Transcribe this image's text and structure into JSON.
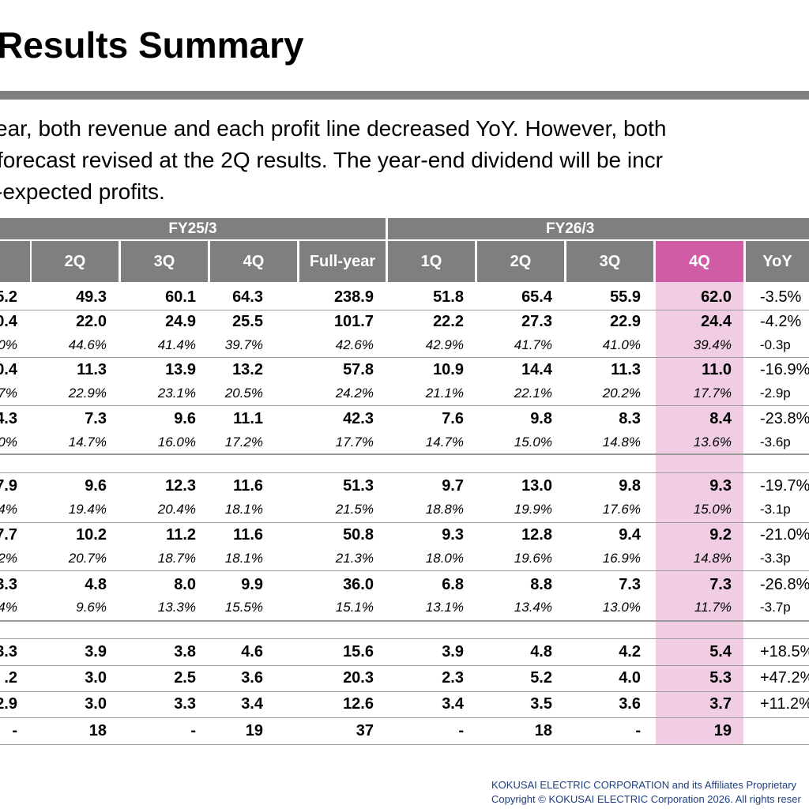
{
  "title": "Results Summary",
  "summary": [
    "ear, both revenue and each profit line decreased YoY. However, both",
    "forecast revised at the 2Q results. The year-end dividend will be incr",
    "-expected profits."
  ],
  "table": {
    "fy_prev": "FY25/3",
    "fy_curr": "FY26/3",
    "columns": [
      "2Q",
      "3Q",
      "4Q",
      "Full-year",
      "1Q",
      "2Q",
      "3Q",
      "4Q",
      "YoY"
    ],
    "rows": [
      {
        "kind": "main",
        "cells": [
          "5.2",
          "49.3",
          "60.1",
          "64.3",
          "238.9",
          "51.8",
          "65.4",
          "55.9",
          "62.0",
          "-3.5%"
        ]
      },
      {
        "kind": "main",
        "cells": [
          "0.4",
          "22.0",
          "24.9",
          "25.5",
          "101.7",
          "22.2",
          "27.3",
          "22.9",
          "24.4",
          "-4.2%"
        ]
      },
      {
        "kind": "sub",
        "cells": [
          "0%",
          "44.6%",
          "41.4%",
          "39.7%",
          "42.6%",
          "42.9%",
          "41.7%",
          "41.0%",
          "39.4%",
          "-0.3p"
        ]
      },
      {
        "kind": "main",
        "cells": [
          "0.4",
          "11.3",
          "13.9",
          "13.2",
          "57.8",
          "10.9",
          "14.4",
          "11.3",
          "11.0",
          "-16.9%"
        ]
      },
      {
        "kind": "sub",
        "cells": [
          "7%",
          "22.9%",
          "23.1%",
          "20.5%",
          "24.2%",
          "21.1%",
          "22.1%",
          "20.2%",
          "17.7%",
          "-2.9p"
        ]
      },
      {
        "kind": "main",
        "cells": [
          "4.3",
          "7.3",
          "9.6",
          "11.1",
          "42.3",
          "7.6",
          "9.8",
          "8.3",
          "8.4",
          "-23.8%"
        ]
      },
      {
        "kind": "sub",
        "cells": [
          "0%",
          "14.7%",
          "16.0%",
          "17.2%",
          "17.7%",
          "14.7%",
          "15.0%",
          "14.8%",
          "13.6%",
          "-3.6p"
        ]
      },
      {
        "kind": "main",
        "cells": [
          "7.9",
          "9.6",
          "12.3",
          "11.6",
          "51.3",
          "9.7",
          "13.0",
          "9.8",
          "9.3",
          "-19.7%"
        ]
      },
      {
        "kind": "sub",
        "cells": [
          "4%",
          "19.4%",
          "20.4%",
          "18.1%",
          "21.5%",
          "18.8%",
          "19.9%",
          "17.6%",
          "15.0%",
          "-3.1p"
        ]
      },
      {
        "kind": "main",
        "cells": [
          "7.7",
          "10.2",
          "11.2",
          "11.6",
          "50.8",
          "9.3",
          "12.8",
          "9.4",
          "9.2",
          "-21.0%"
        ]
      },
      {
        "kind": "sub",
        "cells": [
          "2%",
          "20.7%",
          "18.7%",
          "18.1%",
          "21.3%",
          "18.0%",
          "19.6%",
          "16.9%",
          "14.8%",
          "-3.3p"
        ]
      },
      {
        "kind": "main",
        "cells": [
          "3.3",
          "4.8",
          "8.0",
          "9.9",
          "36.0",
          "6.8",
          "8.8",
          "7.3",
          "7.3",
          "-26.8%"
        ]
      },
      {
        "kind": "sub",
        "cells": [
          "4%",
          "9.6%",
          "13.3%",
          "15.5%",
          "15.1%",
          "13.1%",
          "13.4%",
          "13.0%",
          "11.7%",
          "-3.7p"
        ]
      },
      {
        "kind": "main",
        "cells": [
          "3.3",
          "3.9",
          "3.8",
          "4.6",
          "15.6",
          "3.9",
          "4.8",
          "4.2",
          "5.4",
          "+18.5%"
        ]
      },
      {
        "kind": "main",
        "cells": [
          ".2",
          "3.0",
          "2.5",
          "3.6",
          "20.3",
          "2.3",
          "5.2",
          "4.0",
          "5.3",
          "+47.2%"
        ]
      },
      {
        "kind": "main",
        "cells": [
          "2.9",
          "3.0",
          "3.3",
          "3.4",
          "12.6",
          "3.4",
          "3.5",
          "3.6",
          "3.7",
          "+11.2%"
        ]
      },
      {
        "kind": "main",
        "cells": [
          "-",
          "18",
          "-",
          "19",
          "37",
          "-",
          "18",
          "-",
          "19",
          ""
        ]
      }
    ]
  },
  "footer": [
    "KOKUSAI ELECTRIC CORPORATION and its Affiliates Proprietary",
    "Copyright © KOKUSAI ELECTRIC Corporation 2026. All rights reser"
  ],
  "colors": {
    "header_gray": "#7f7f7f",
    "highlight_header": "#d05ca6",
    "highlight_column": "#f0cde3",
    "footer_text": "#1f3e80"
  }
}
